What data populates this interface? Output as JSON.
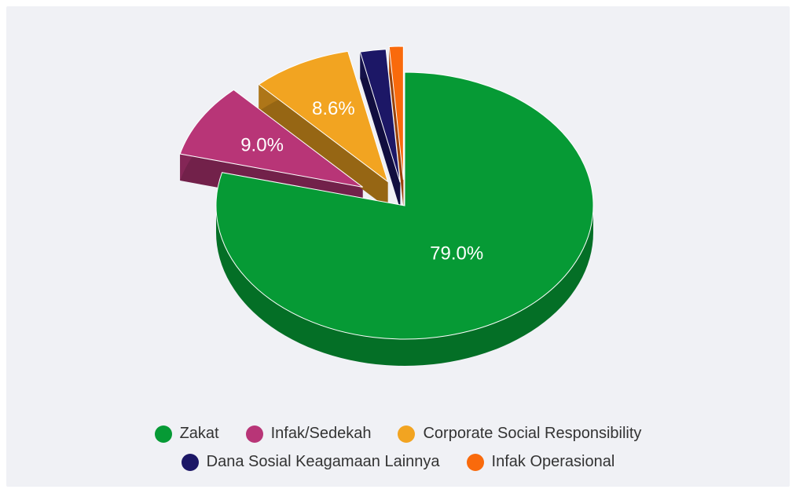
{
  "chart_data": {
    "type": "pie",
    "style": "3d-exploded",
    "series": [
      {
        "name": "Zakat",
        "value": 79.0,
        "label": "79.0%",
        "color": "#069a35"
      },
      {
        "name": "Infak/Sedekah",
        "value": 9.0,
        "label": "9.0%",
        "color": "#b83577"
      },
      {
        "name": "Corporate Social Responsibility",
        "value": 8.6,
        "label": "8.6%",
        "color": "#f2a421"
      },
      {
        "name": "Dana Sosial Keagamaan Lainnya",
        "value": 2.2,
        "label": "",
        "color": "#1c1766"
      },
      {
        "name": "Infak Operasional",
        "value": 1.2,
        "label": "",
        "color": "#f96a0c"
      }
    ],
    "legend": {
      "position": "bottom",
      "rows": [
        [
          0,
          1,
          2
        ],
        [
          3,
          4
        ]
      ]
    }
  }
}
